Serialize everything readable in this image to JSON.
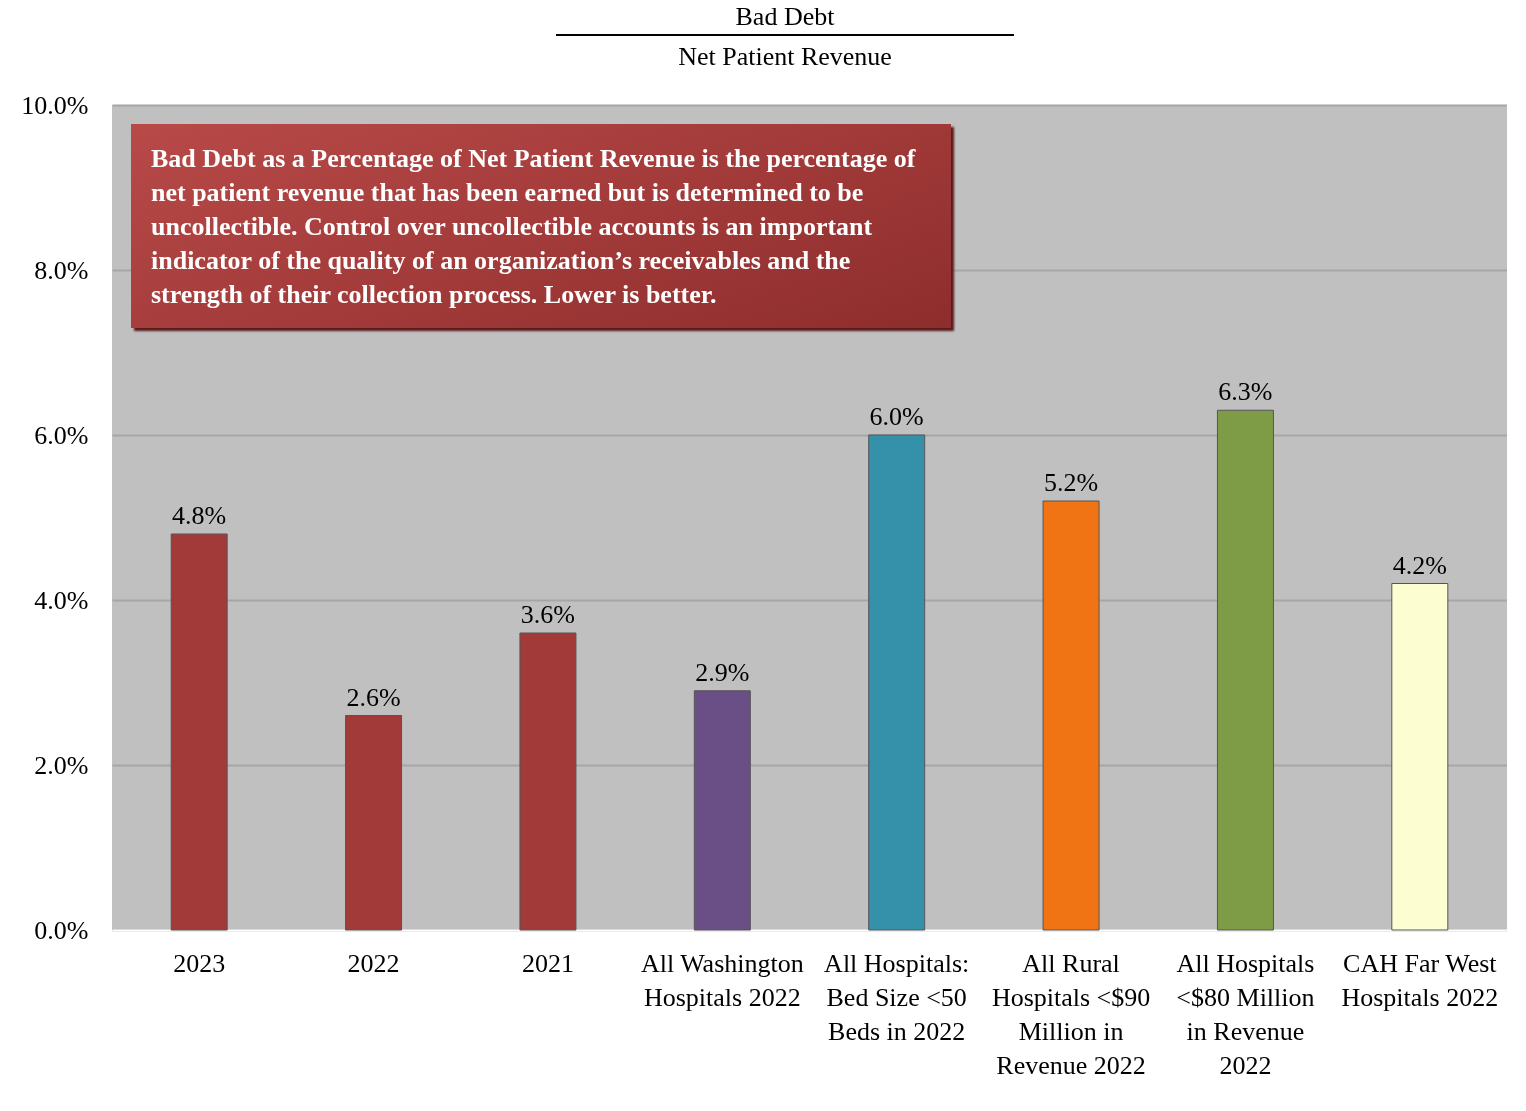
{
  "chart_data": {
    "type": "bar",
    "title": "Bad Debt",
    "subtitle": "Net Patient Revenue",
    "annotations": [
      "Bad Debt as a Percentage of Net Patient Revenue is the percentage of net patient revenue that has been earned but is determined to be uncollectible. Control over uncollectible accounts is an important indicator of the quality of an organization’s receivables and the strength of their collection process. Lower is better."
    ],
    "categories": [
      "2023",
      "2022",
      "2021",
      "All Washington Hospitals 2022",
      "All Hospitals: Bed Size <50 Beds in 2022",
      "All Rural Hospitals <$90 Million in Revenue 2022",
      "All Hospitals <$80 Million in Revenue 2022",
      "CAH Far West Hospitals 2022"
    ],
    "values": [
      4.8,
      2.6,
      3.6,
      2.9,
      6.0,
      5.2,
      6.3,
      4.2
    ],
    "colors": [
      "#a33a3a",
      "#a33a3a",
      "#a33a3a",
      "#6a4f86",
      "#3590aa",
      "#f07314",
      "#7e9c45",
      "#fdfdd2"
    ],
    "value_labels": [
      "4.8%",
      "2.6%",
      "3.6%",
      "2.9%",
      "6.0%",
      "5.2%",
      "6.3%",
      "4.2%"
    ],
    "ylim": [
      0,
      10
    ],
    "yticks": [
      {
        "value": 0,
        "label": "0.0%"
      },
      {
        "value": 2,
        "label": "2.0%"
      },
      {
        "value": 4,
        "label": "4.0%"
      },
      {
        "value": 6,
        "label": "6.0%"
      },
      {
        "value": 8,
        "label": "8.0%"
      },
      {
        "value": 10,
        "label": "10.0%"
      }
    ],
    "grid": "y"
  }
}
